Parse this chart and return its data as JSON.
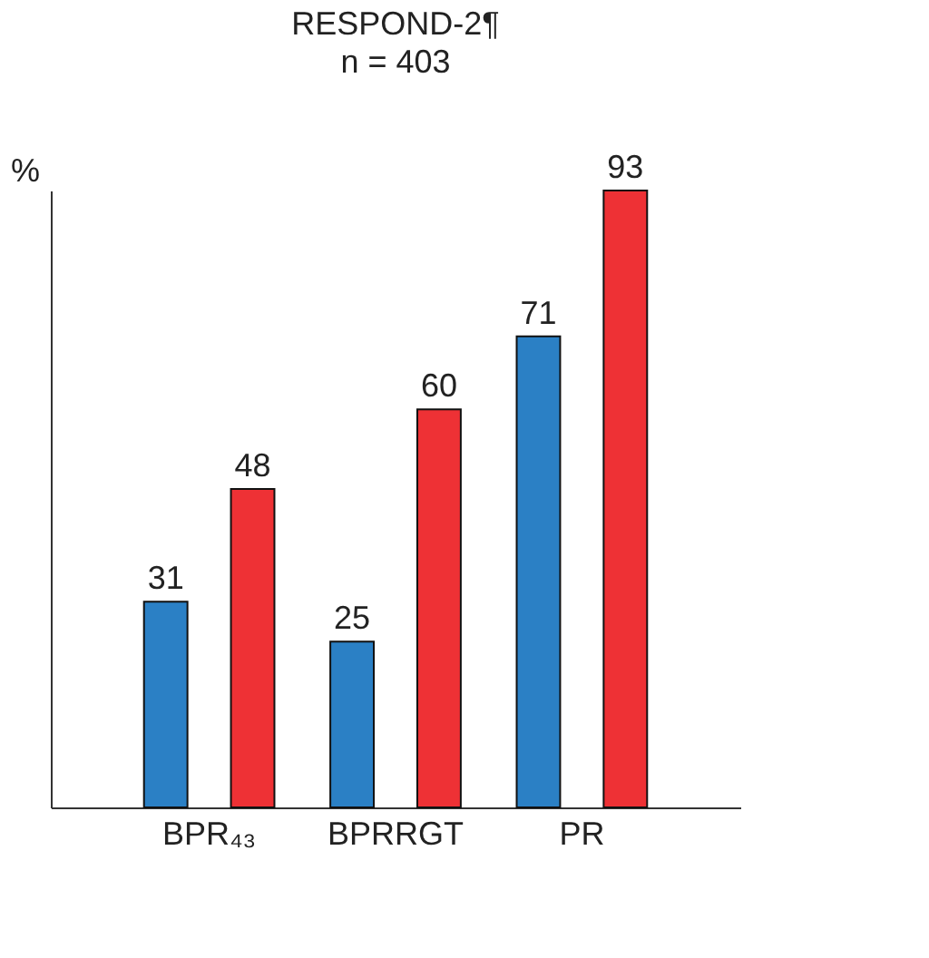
{
  "chart_data": {
    "type": "bar",
    "title": "RESPOND-2¶",
    "subtitle": "n = 403",
    "ylabel": "%",
    "categories": [
      "BPR₄₃",
      "BPRRGT",
      "PR"
    ],
    "series": [
      {
        "color": "#2b80c5",
        "values": [
          31,
          25,
          71
        ]
      },
      {
        "color": "#ee3135",
        "values": [
          48,
          60,
          93
        ]
      }
    ],
    "data_labels": true,
    "tick_labels": "x",
    "grid": false
  }
}
